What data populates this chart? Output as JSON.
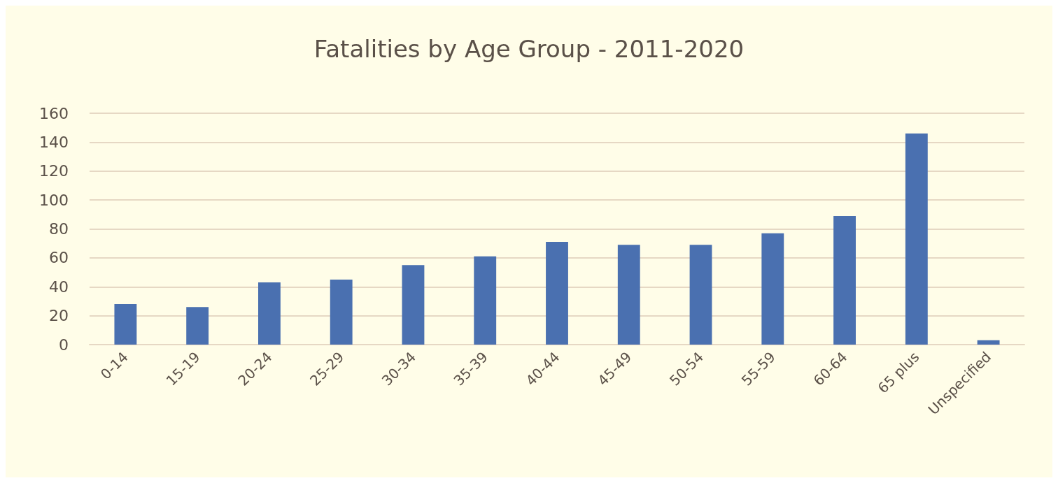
{
  "chart_data": {
    "type": "bar",
    "title": "Fatalities by Age Group - 2011-2020",
    "categories": [
      "0-14",
      "15-19",
      "20-24",
      "25-29",
      "30-34",
      "35-39",
      "40-44",
      "45-49",
      "50-54",
      "55-59",
      "60-64",
      "65 plus",
      "Unspecified"
    ],
    "values": [
      28,
      26,
      43,
      45,
      55,
      61,
      71,
      69,
      69,
      77,
      89,
      146,
      3
    ],
    "color": "#4a70b0",
    "ylim": [
      0,
      160
    ],
    "yticks": [
      0,
      20,
      40,
      60,
      80,
      100,
      120,
      140,
      160
    ],
    "grid": true
  }
}
